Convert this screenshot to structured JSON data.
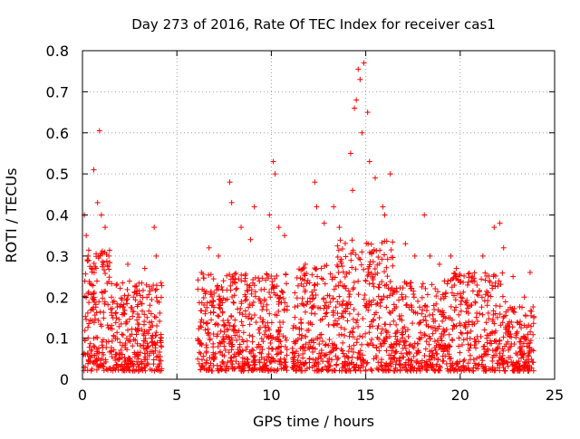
{
  "chart_data": {
    "type": "scatter",
    "title": "Day 273 of 2016, Rate Of TEC Index for receiver cas1",
    "xlabel": "GPS time / hours",
    "ylabel": "ROTI / TECUs",
    "xlim": [
      0,
      25
    ],
    "ylim": [
      0,
      0.8
    ],
    "xticks": [
      "0",
      "5",
      "10",
      "15",
      "20",
      "25"
    ],
    "yticks": [
      "0",
      "0.1",
      "0.2",
      "0.3",
      "0.4",
      "0.5",
      "0.6",
      "0.7",
      "0.8"
    ],
    "marker": "+",
    "color": "#ff0000",
    "grid": true,
    "series": [
      {
        "name": "cas1 ROTI",
        "summary": {
          "data_gaps_hours": [
            [
              4.2,
              6.1
            ]
          ],
          "peak_value": 0.77,
          "peak_time_hours": 14.9,
          "typical_range": [
            0.0,
            0.25
          ]
        },
        "points": [
          [
            0.1,
            0.4
          ],
          [
            0.2,
            0.35
          ],
          [
            0.3,
            0.3
          ],
          [
            0.5,
            0.27
          ],
          [
            0.6,
            0.51
          ],
          [
            0.8,
            0.43
          ],
          [
            0.9,
            0.605
          ],
          [
            1.0,
            0.4
          ],
          [
            1.2,
            0.37
          ],
          [
            1.4,
            0.3
          ],
          [
            2.4,
            0.28
          ],
          [
            2.7,
            0.2
          ],
          [
            3.3,
            0.27
          ],
          [
            3.8,
            0.37
          ],
          [
            3.9,
            0.3
          ],
          [
            6.3,
            0.26
          ],
          [
            6.7,
            0.32
          ],
          [
            7.2,
            0.3
          ],
          [
            7.8,
            0.48
          ],
          [
            7.9,
            0.43
          ],
          [
            8.4,
            0.37
          ],
          [
            8.9,
            0.34
          ],
          [
            9.1,
            0.42
          ],
          [
            9.9,
            0.4
          ],
          [
            10.1,
            0.53
          ],
          [
            10.2,
            0.5
          ],
          [
            10.4,
            0.37
          ],
          [
            10.7,
            0.35
          ],
          [
            11.8,
            0.28
          ],
          [
            12.3,
            0.48
          ],
          [
            12.4,
            0.42
          ],
          [
            12.8,
            0.38
          ],
          [
            13.3,
            0.42
          ],
          [
            13.6,
            0.37
          ],
          [
            14.2,
            0.55
          ],
          [
            14.3,
            0.46
          ],
          [
            14.4,
            0.66
          ],
          [
            14.5,
            0.68
          ],
          [
            14.6,
            0.755
          ],
          [
            14.7,
            0.73
          ],
          [
            14.8,
            0.6
          ],
          [
            14.9,
            0.77
          ],
          [
            15.1,
            0.65
          ],
          [
            15.2,
            0.53
          ],
          [
            15.5,
            0.49
          ],
          [
            15.9,
            0.42
          ],
          [
            16.0,
            0.4
          ],
          [
            16.3,
            0.5
          ],
          [
            17.1,
            0.33
          ],
          [
            17.6,
            0.3
          ],
          [
            18.1,
            0.4
          ],
          [
            18.4,
            0.3
          ],
          [
            18.9,
            0.28
          ],
          [
            19.5,
            0.3
          ],
          [
            19.8,
            0.27
          ],
          [
            20.6,
            0.24
          ],
          [
            21.2,
            0.3
          ],
          [
            21.8,
            0.37
          ],
          [
            22.1,
            0.38
          ],
          [
            22.3,
            0.32
          ],
          [
            22.8,
            0.25
          ],
          [
            23.4,
            0.2
          ],
          [
            23.7,
            0.26
          ],
          [
            23.9,
            0.15
          ]
        ]
      }
    ]
  }
}
